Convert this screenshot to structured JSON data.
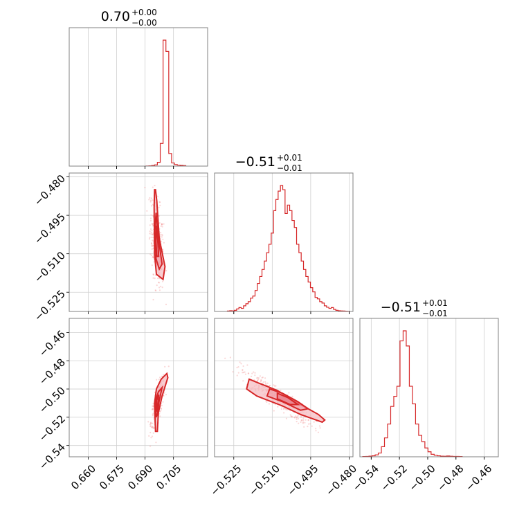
{
  "chart_data": {
    "type": "corner",
    "color": "#d62728",
    "parameters": [
      {
        "title": {
          "median": "0.70",
          "plus": "+0.00",
          "minus": "−0.00"
        },
        "range": [
          0.65,
          0.723
        ],
        "ticks": [
          0.66,
          0.675,
          0.69,
          0.705
        ],
        "tick_labels": [
          "0.660",
          "0.675",
          "0.690",
          "0.705"
        ]
      },
      {
        "title": {
          "median": "−0.51",
          "plus": "+0.01",
          "minus": "−0.01"
        },
        "range": [
          -0.5325,
          -0.4785
        ],
        "ticks": [
          -0.525,
          -0.51,
          -0.495,
          -0.48
        ],
        "tick_labels": [
          "−0.525",
          "−0.510",
          "−0.495",
          "−0.480"
        ]
      },
      {
        "title": {
          "median": "−0.51",
          "plus": "+0.01",
          "minus": "−0.01"
        },
        "range": [
          -0.548,
          -0.45
        ],
        "ticks": [
          -0.54,
          -0.52,
          -0.5,
          -0.48,
          -0.46
        ],
        "tick_labels": [
          "−0.54",
          "−0.52",
          "−0.50",
          "−0.48",
          "−0.46"
        ]
      }
    ],
    "histograms": [
      {
        "param": 0,
        "bin_start": 0.6905,
        "bin_width": 0.0015,
        "counts": [
          1,
          2,
          5,
          10,
          30,
          180,
          1000,
          910,
          100,
          25,
          12,
          8,
          6,
          4
        ]
      },
      {
        "param": 1,
        "bin_start": -0.5275,
        "bin_width": 0.0009,
        "counts": [
          3,
          5,
          4,
          8,
          18,
          28,
          22,
          40,
          55,
          70,
          95,
          110,
          150,
          200,
          250,
          300,
          360,
          420,
          480,
          560,
          720,
          800,
          860,
          900,
          870,
          700,
          760,
          720,
          650,
          600,
          480,
          420,
          360,
          300,
          250,
          210,
          170,
          140,
          100,
          90,
          70,
          60,
          40,
          30,
          22,
          28,
          15,
          8,
          5,
          4,
          3,
          2,
          1
        ]
      },
      {
        "param": 2,
        "bin_start": -0.546,
        "bin_width": 0.0022,
        "counts": [
          2,
          3,
          5,
          8,
          15,
          30,
          80,
          150,
          260,
          400,
          480,
          560,
          920,
          1000,
          880,
          560,
          420,
          260,
          170,
          120,
          70,
          40,
          20,
          12,
          8,
          5,
          4,
          6,
          4,
          3,
          3,
          2
        ]
      }
    ],
    "contours": [
      {
        "x_param": 0,
        "y_param": 1,
        "levels": [
          [
            [
              0.6955,
              -0.485
            ],
            [
              0.6962,
              -0.4895
            ],
            [
              0.6975,
              -0.504
            ],
            [
              0.7005,
              -0.515
            ],
            [
              0.6995,
              -0.52
            ],
            [
              0.696,
              -0.518
            ],
            [
              0.695,
              -0.51
            ],
            [
              0.6948,
              -0.492
            ],
            [
              0.695,
              -0.485
            ]
          ],
          [
            [
              0.6958,
              -0.494
            ],
            [
              0.697,
              -0.504
            ],
            [
              0.699,
              -0.514
            ],
            [
              0.6975,
              -0.516
            ],
            [
              0.6958,
              -0.512
            ],
            [
              0.6952,
              -0.501
            ],
            [
              0.6958,
              -0.494
            ]
          ],
          [
            [
              0.696,
              -0.499
            ],
            [
              0.6968,
              -0.506
            ],
            [
              0.6972,
              -0.511
            ],
            [
              0.6962,
              -0.511
            ],
            [
              0.6957,
              -0.505
            ],
            [
              0.696,
              -0.499
            ]
          ]
        ]
      },
      {
        "x_param": 0,
        "y_param": 2,
        "levels": [
          [
            [
              0.6955,
              -0.53
            ],
            [
              0.695,
              -0.51
            ],
            [
              0.696,
              -0.5
            ],
            [
              0.6985,
              -0.493
            ],
            [
              0.7015,
              -0.489
            ],
            [
              0.702,
              -0.492
            ],
            [
              0.699,
              -0.505
            ],
            [
              0.697,
              -0.517
            ],
            [
              0.6965,
              -0.53
            ]
          ],
          [
            [
              0.6958,
              -0.52
            ],
            [
              0.6956,
              -0.508
            ],
            [
              0.697,
              -0.502
            ],
            [
              0.699,
              -0.499
            ],
            [
              0.6975,
              -0.508
            ],
            [
              0.6965,
              -0.518
            ]
          ],
          [
            [
              0.696,
              -0.516
            ],
            [
              0.696,
              -0.508
            ],
            [
              0.6972,
              -0.504
            ],
            [
              0.6966,
              -0.512
            ]
          ]
        ]
      },
      {
        "x_param": 1,
        "y_param": 2,
        "levels": [
          [
            [
              -0.519,
              -0.493
            ],
            [
              -0.515,
              -0.496
            ],
            [
              -0.508,
              -0.501
            ],
            [
              -0.5,
              -0.51
            ],
            [
              -0.492,
              -0.518
            ],
            [
              -0.4895,
              -0.522
            ],
            [
              -0.4905,
              -0.5235
            ],
            [
              -0.499,
              -0.518
            ],
            [
              -0.506,
              -0.512
            ],
            [
              -0.516,
              -0.505
            ],
            [
              -0.52,
              -0.5
            ],
            [
              -0.519,
              -0.493
            ]
          ],
          [
            [
              -0.511,
              -0.5
            ],
            [
              -0.506,
              -0.503
            ],
            [
              -0.5,
              -0.509
            ],
            [
              -0.496,
              -0.514
            ],
            [
              -0.499,
              -0.515
            ],
            [
              -0.506,
              -0.509
            ],
            [
              -0.512,
              -0.505
            ],
            [
              -0.511,
              -0.5
            ]
          ],
          [
            [
              -0.508,
              -0.503
            ],
            [
              -0.504,
              -0.506
            ],
            [
              -0.5,
              -0.511
            ],
            [
              -0.503,
              -0.511
            ],
            [
              -0.508,
              -0.507
            ],
            [
              -0.508,
              -0.503
            ]
          ]
        ]
      }
    ],
    "scatter_clouds": [
      {
        "x_param": 0,
        "y_param": 1,
        "center": [
          0.6962,
          -0.505
        ],
        "spread": [
          0.0018,
          0.0085
        ],
        "corr": -0.4,
        "n": 320
      },
      {
        "x_param": 0,
        "y_param": 2,
        "center": [
          0.6968,
          -0.51
        ],
        "spread": [
          0.0018,
          0.009
        ],
        "corr": 0.75,
        "n": 320
      },
      {
        "x_param": 1,
        "y_param": 2,
        "center": [
          -0.508,
          -0.506
        ],
        "spread": [
          0.007,
          0.01
        ],
        "corr": -0.92,
        "n": 320
      }
    ]
  }
}
